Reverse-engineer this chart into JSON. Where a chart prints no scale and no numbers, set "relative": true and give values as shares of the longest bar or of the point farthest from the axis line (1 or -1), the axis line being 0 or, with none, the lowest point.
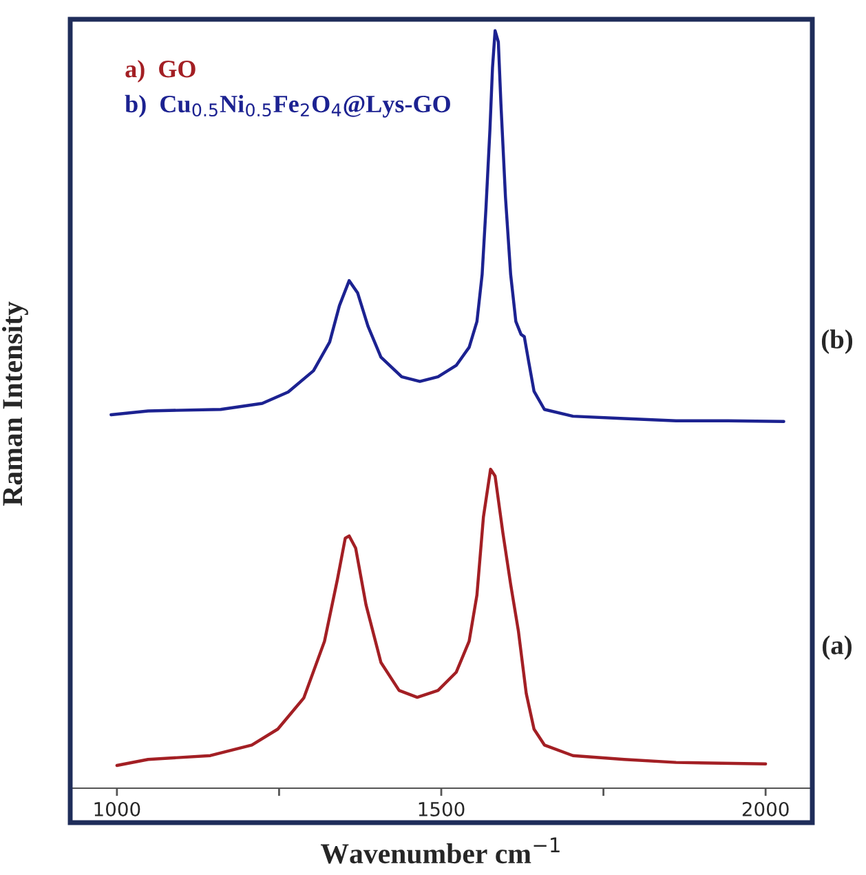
{
  "chart_data": {
    "type": "line",
    "relative": true,
    "xlabel": "Wavenumber cm$^{−1}$",
    "ylabel": "Raman Intensity",
    "xlim": [
      928,
      2072
    ],
    "xticks": [
      1000,
      {
        "value": 1250,
        "label": null
      },
      1500,
      {
        "value": 1750,
        "label": null
      },
      2000
    ],
    "grid": false,
    "legend": "top left",
    "tick_labels": "x",
    "annotations": [
      "(b)",
      "(a)"
    ],
    "series": [
      {
        "name": "a)  GO",
        "color": "#a31f24",
        "x": [
          1000,
          1048,
          1144,
          1208,
          1248,
          1288,
          1320,
          1340,
          1352,
          1358,
          1368,
          1384,
          1407,
          1435,
          1463,
          1495,
          1523,
          1543,
          1555,
          1565,
          1576,
          1583,
          1595,
          1607,
          1619,
          1631,
          1643,
          1659,
          1703,
          1782,
          1862,
          2000
        ],
        "values": [
          0.03,
          0.038,
          0.043,
          0.057,
          0.078,
          0.119,
          0.194,
          0.276,
          0.33,
          0.333,
          0.317,
          0.242,
          0.166,
          0.129,
          0.12,
          0.129,
          0.153,
          0.194,
          0.255,
          0.358,
          0.421,
          0.412,
          0.337,
          0.269,
          0.207,
          0.125,
          0.078,
          0.057,
          0.043,
          0.038,
          0.034,
          0.032
        ]
      },
      {
        "name": "b)  Cu$_{0.5}$Ni$_{0.5}$Fe$_{2}$O$_{4}$@Lys-GO",
        "color": "#1c2291",
        "x": [
          991,
          1048,
          1160,
          1224,
          1264,
          1303,
          1328,
          1343,
          1358,
          1371,
          1387,
          1407,
          1439,
          1467,
          1495,
          1523,
          1543,
          1555,
          1563,
          1569,
          1575,
          1579,
          1583,
          1588,
          1592,
          1599,
          1607,
          1615,
          1623,
          1628,
          1635,
          1643,
          1659,
          1703,
          1782,
          1862,
          1942,
          2028
        ],
        "values": [
          0.493,
          0.498,
          0.5,
          0.508,
          0.523,
          0.551,
          0.589,
          0.637,
          0.67,
          0.654,
          0.61,
          0.569,
          0.543,
          0.537,
          0.543,
          0.558,
          0.582,
          0.616,
          0.678,
          0.767,
          0.869,
          0.951,
          1.0,
          0.985,
          0.903,
          0.78,
          0.678,
          0.616,
          0.599,
          0.596,
          0.562,
          0.524,
          0.5,
          0.491,
          0.488,
          0.485,
          0.485,
          0.484
        ]
      }
    ]
  }
}
